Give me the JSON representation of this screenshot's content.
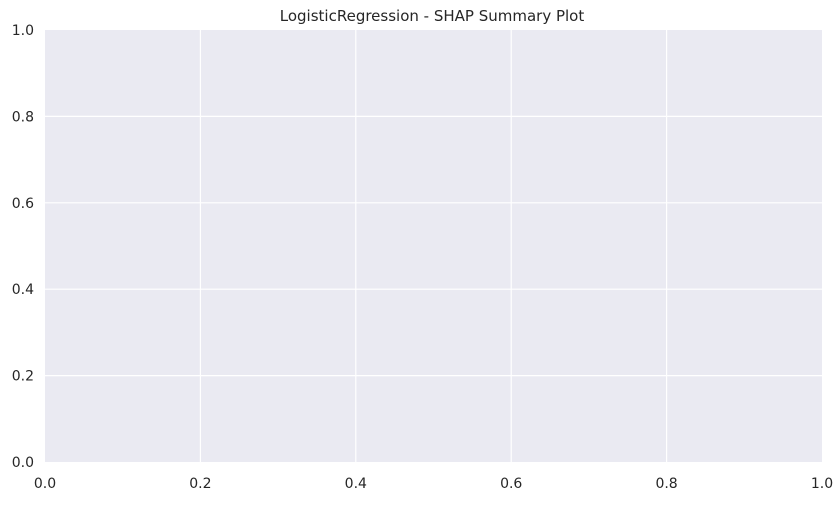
{
  "chart_data": {
    "type": "scatter",
    "title": "LogisticRegression - SHAP Summary Plot",
    "xlabel": "",
    "ylabel": "",
    "xlim": [
      0,
      1
    ],
    "ylim": [
      0,
      1
    ],
    "xticks": [
      "0.0",
      "0.2",
      "0.4",
      "0.6",
      "0.8",
      "1.0"
    ],
    "yticks": [
      "0.0",
      "0.2",
      "0.4",
      "0.6",
      "0.8",
      "1.0"
    ],
    "series": [],
    "grid": true,
    "colors": {
      "background": "#eaeaf2",
      "grid": "#ffffff",
      "text": "#262626"
    }
  }
}
